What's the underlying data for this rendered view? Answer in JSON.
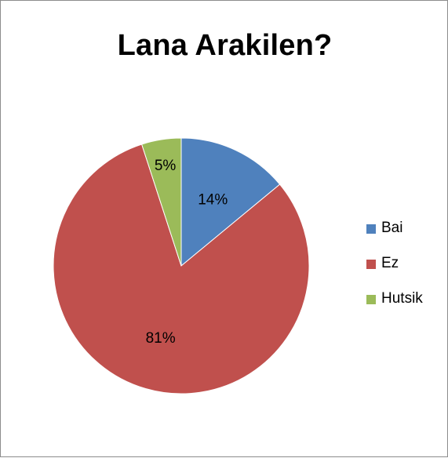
{
  "chart_data": {
    "type": "pie",
    "title": "Lana Arakilen?",
    "categories": [
      "Bai",
      "Ez",
      "Hutsik"
    ],
    "values": [
      14,
      81,
      5
    ],
    "labels": [
      "14%",
      "81%",
      "5%"
    ],
    "colors": [
      "#4f81bd",
      "#c0504d",
      "#9bbb59"
    ],
    "legend_position": "right",
    "start_angle": "12 o'clock, clockwise"
  }
}
